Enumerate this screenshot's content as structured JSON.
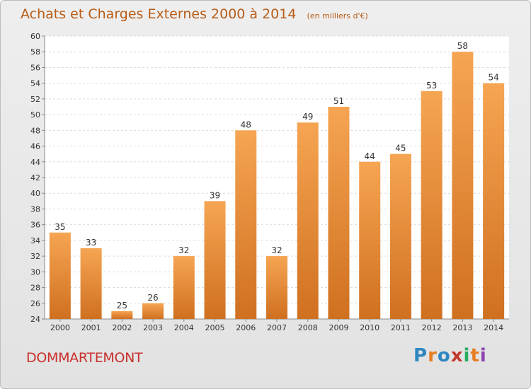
{
  "title": "Achats et Charges Externes 2000 à 2014",
  "unit": "(en milliers d'€)",
  "place": "DOMMARTEMONT",
  "logo_letters": [
    "P",
    "r",
    "o",
    "x",
    "i",
    "t",
    "i"
  ],
  "logo_colors": [
    "#2e86c1",
    "#e67e22",
    "#2e86c1",
    "#c0392b",
    "#27ae60",
    "#e67e22",
    "#8e44ad"
  ],
  "bar_color_top": "#f6a552",
  "bar_color_bottom": "#cf7020",
  "chart_data": {
    "type": "bar",
    "categories": [
      "2000",
      "2001",
      "2002",
      "2003",
      "2004",
      "2005",
      "2006",
      "2007",
      "2008",
      "2009",
      "2010",
      "2011",
      "2012",
      "2013",
      "2014"
    ],
    "values": [
      35,
      33,
      25,
      26,
      32,
      39,
      48,
      32,
      49,
      51,
      44,
      45,
      53,
      58,
      54
    ],
    "ylim": [
      24,
      60
    ],
    "yticks": [
      24,
      26,
      28,
      30,
      32,
      34,
      36,
      38,
      40,
      42,
      44,
      46,
      48,
      50,
      52,
      54,
      56,
      58,
      60
    ],
    "grid": true
  }
}
